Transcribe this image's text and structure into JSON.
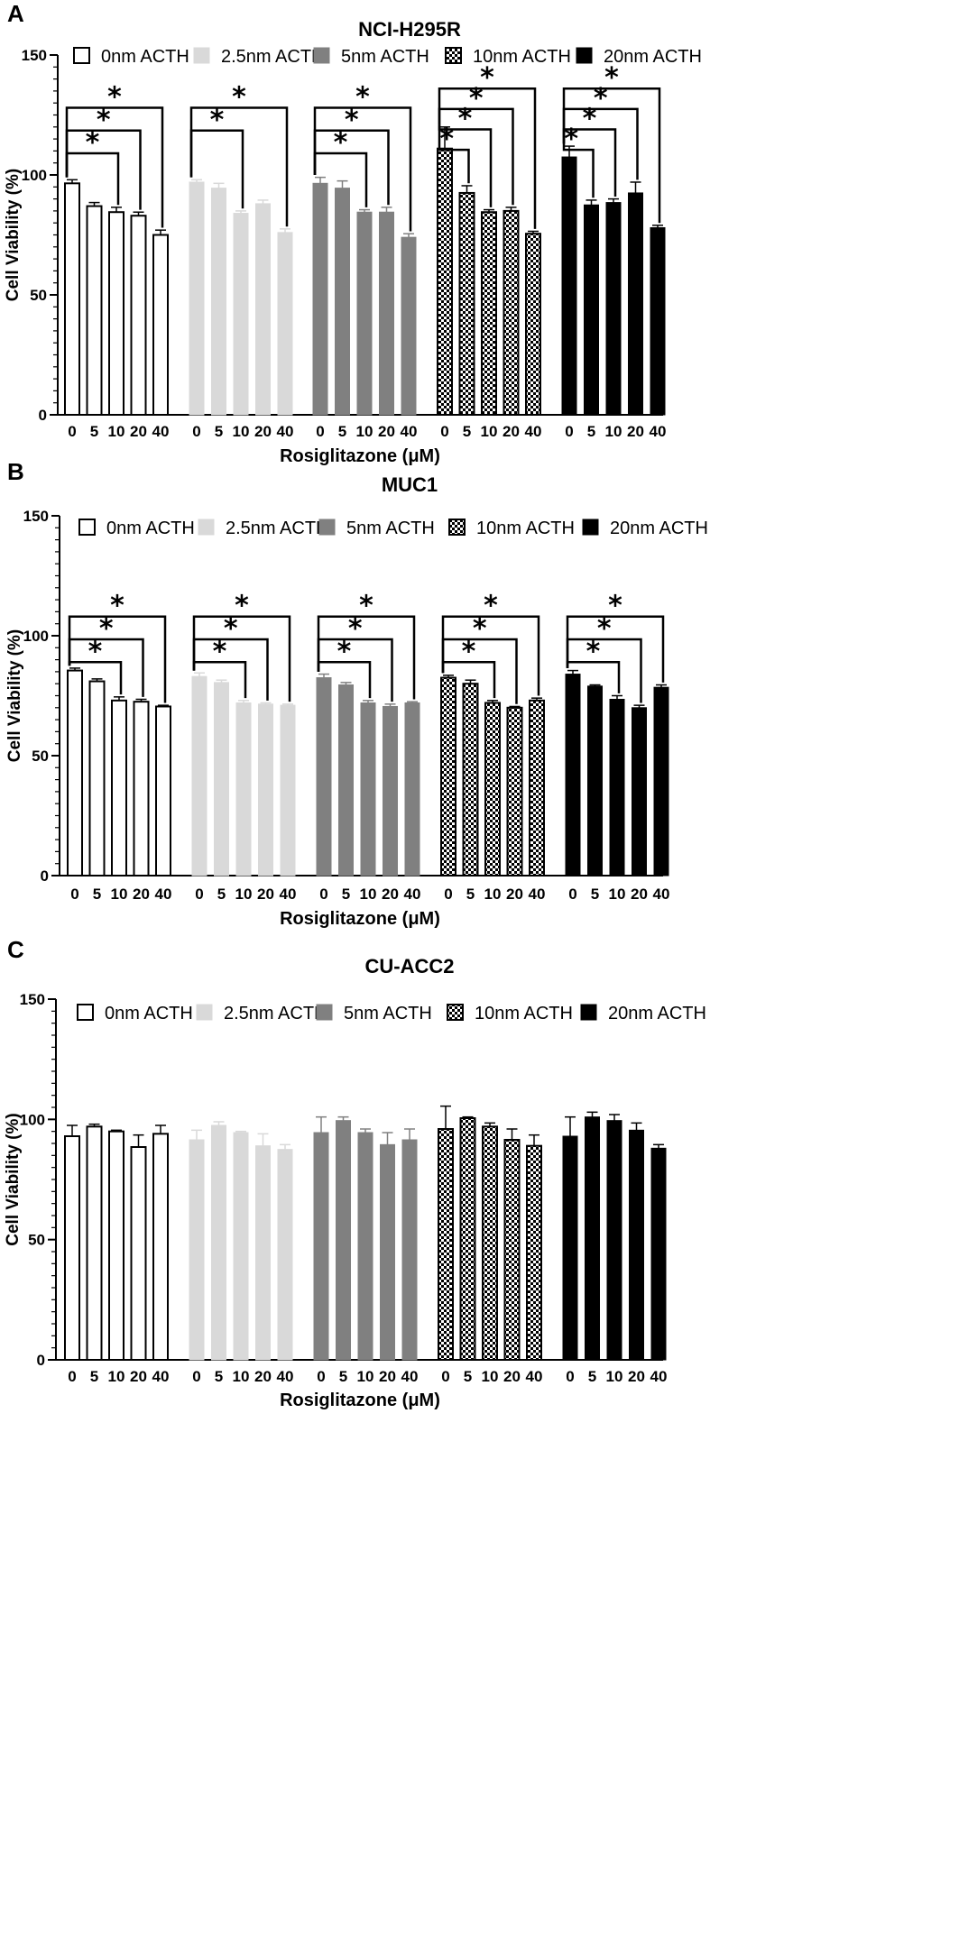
{
  "chart_data": [
    {
      "type": "bar",
      "panel_label": "A",
      "title": "NCI-H295R",
      "xlabel": "Rosiglitazone (μM)",
      "ylabel": "Cell Viability (%)",
      "ylim": [
        0,
        150
      ],
      "yticks": [
        0,
        50,
        100,
        150
      ],
      "categories": [
        "0",
        "5",
        "10",
        "20",
        "40"
      ],
      "series": [
        {
          "name": "0nm ACTH",
          "values": [
            96.5,
            87,
            84.5,
            83,
            75
          ],
          "errors": [
            1.5,
            1.5,
            2,
            1.5,
            2
          ]
        },
        {
          "name": "2.5nm ACTH",
          "values": [
            97,
            94.5,
            84,
            88,
            76
          ],
          "errors": [
            1,
            2,
            1,
            1.5,
            1.5
          ]
        },
        {
          "name": "5nm ACTH",
          "values": [
            96.5,
            94.5,
            84.5,
            84.5,
            74
          ],
          "errors": [
            2.5,
            3,
            1,
            2,
            1.5
          ]
        },
        {
          "name": "10nm ACTH",
          "values": [
            111,
            92.5,
            84.5,
            85,
            75.5
          ],
          "errors": [
            9,
            3,
            1,
            1.5,
            1
          ]
        },
        {
          "name": "20nm ACTH",
          "values": [
            107.5,
            87.5,
            88.5,
            92.5,
            78
          ],
          "errors": [
            4.5,
            2,
            1.5,
            4.5,
            1
          ]
        }
      ],
      "significance": [
        {
          "series": 0,
          "comparisons": [
            {
              "from": "0",
              "to": "10",
              "label": "*"
            },
            {
              "from": "0",
              "to": "20",
              "label": "*"
            },
            {
              "from": "0",
              "to": "40",
              "label": "*"
            }
          ]
        },
        {
          "series": 1,
          "comparisons": [
            {
              "from": "0",
              "to": "10",
              "label": "*"
            },
            {
              "from": "0",
              "to": "40",
              "label": "*"
            }
          ]
        },
        {
          "series": 2,
          "comparisons": [
            {
              "from": "0",
              "to": "10",
              "label": "*"
            },
            {
              "from": "0",
              "to": "20",
              "label": "*"
            },
            {
              "from": "0",
              "to": "40",
              "label": "*"
            }
          ]
        },
        {
          "series": 3,
          "comparisons": [
            {
              "from": "0",
              "to": "5",
              "label": "*"
            },
            {
              "from": "0",
              "to": "10",
              "label": "*"
            },
            {
              "from": "0",
              "to": "20",
              "label": "*"
            },
            {
              "from": "0",
              "to": "40",
              "label": "*"
            }
          ]
        },
        {
          "series": 4,
          "comparisons": [
            {
              "from": "0",
              "to": "5",
              "label": "*"
            },
            {
              "from": "0",
              "to": "10",
              "label": "*"
            },
            {
              "from": "0",
              "to": "20",
              "label": "*"
            },
            {
              "from": "0",
              "to": "40",
              "label": "*"
            }
          ]
        }
      ]
    },
    {
      "type": "bar",
      "panel_label": "B",
      "title": "MUC1",
      "xlabel": "Rosiglitazone (μM)",
      "ylabel": "Cell Viability (%)",
      "ylim": [
        0,
        150
      ],
      "yticks": [
        0,
        50,
        100,
        150
      ],
      "categories": [
        "0",
        "5",
        "10",
        "20",
        "40"
      ],
      "series": [
        {
          "name": "0nm ACTH",
          "values": [
            85.5,
            81,
            73,
            72.5,
            70.5
          ],
          "errors": [
            1,
            1,
            1.5,
            1,
            0.5
          ]
        },
        {
          "name": "2.5nm ACTH",
          "values": [
            83,
            80.5,
            72,
            71.5,
            71
          ],
          "errors": [
            1.5,
            1,
            1,
            0.5,
            0.5
          ]
        },
        {
          "name": "5nm ACTH",
          "values": [
            82.5,
            79.5,
            72,
            70.5,
            72
          ],
          "errors": [
            1.5,
            1,
            1,
            1,
            0.5
          ]
        },
        {
          "name": "10nm ACTH",
          "values": [
            82.5,
            80,
            72,
            70,
            73
          ],
          "errors": [
            1,
            1.5,
            1,
            0.5,
            1
          ]
        },
        {
          "name": "20nm ACTH",
          "values": [
            84,
            79,
            73.5,
            70,
            78.5
          ],
          "errors": [
            1.5,
            0.5,
            1.5,
            1,
            1
          ]
        }
      ],
      "significance": [
        {
          "series": 0,
          "comparisons": [
            {
              "from": "0",
              "to": "10",
              "label": "*"
            },
            {
              "from": "0",
              "to": "20",
              "label": "*"
            },
            {
              "from": "0",
              "to": "40",
              "label": "*"
            }
          ]
        },
        {
          "series": 1,
          "comparisons": [
            {
              "from": "0",
              "to": "10",
              "label": "*"
            },
            {
              "from": "0",
              "to": "20",
              "label": "*"
            },
            {
              "from": "0",
              "to": "40",
              "label": "*"
            }
          ]
        },
        {
          "series": 2,
          "comparisons": [
            {
              "from": "0",
              "to": "10",
              "label": "*"
            },
            {
              "from": "0",
              "to": "20",
              "label": "*"
            },
            {
              "from": "0",
              "to": "40",
              "label": "*"
            }
          ]
        },
        {
          "series": 3,
          "comparisons": [
            {
              "from": "0",
              "to": "10",
              "label": "*"
            },
            {
              "from": "0",
              "to": "20",
              "label": "*"
            },
            {
              "from": "0",
              "to": "40",
              "label": "*"
            }
          ]
        },
        {
          "series": 4,
          "comparisons": [
            {
              "from": "0",
              "to": "10",
              "label": "*"
            },
            {
              "from": "0",
              "to": "20",
              "label": "*"
            },
            {
              "from": "0",
              "to": "40",
              "label": "*"
            }
          ]
        }
      ]
    },
    {
      "type": "bar",
      "panel_label": "C",
      "title": "CU-ACC2",
      "xlabel": "Rosiglitazone (μM)",
      "ylabel": "Cell Viability (%)",
      "ylim": [
        0,
        150
      ],
      "yticks": [
        0,
        50,
        100,
        150
      ],
      "categories": [
        "0",
        "5",
        "10",
        "20",
        "40"
      ],
      "series": [
        {
          "name": "0nm ACTH",
          "values": [
            93,
            97,
            95,
            88.5,
            94
          ],
          "errors": [
            4.5,
            1,
            0.5,
            5,
            3.5
          ]
        },
        {
          "name": "2.5nm ACTH",
          "values": [
            91.5,
            97.5,
            94.5,
            89,
            87.5
          ],
          "errors": [
            4,
            1.5,
            0.5,
            5,
            2
          ]
        },
        {
          "name": "5nm ACTH",
          "values": [
            94.5,
            99.5,
            94.5,
            89.5,
            91.5
          ],
          "errors": [
            6.5,
            1.5,
            1.5,
            5,
            4.5
          ]
        },
        {
          "name": "10nm ACTH",
          "values": [
            96,
            100.5,
            97,
            91.5,
            89
          ],
          "errors": [
            9.5,
            0.5,
            1.5,
            4.5,
            4.5
          ]
        },
        {
          "name": "20nm ACTH",
          "values": [
            93,
            101,
            99.5,
            95.5,
            88
          ],
          "errors": [
            8,
            2,
            2.5,
            3,
            1.5
          ]
        }
      ],
      "significance": []
    }
  ],
  "styles": {
    "fills": [
      "#ffffff",
      "#d9d9d9",
      "#808080",
      "pattern-checker",
      "#000000"
    ],
    "stroke_colors": [
      "#000000",
      "#d9d9d9",
      "#808080",
      "#000000",
      "#000000"
    ],
    "error_colors": [
      "#000000",
      "#d9d9d9",
      "#808080",
      "#000000",
      "#000000"
    ]
  }
}
